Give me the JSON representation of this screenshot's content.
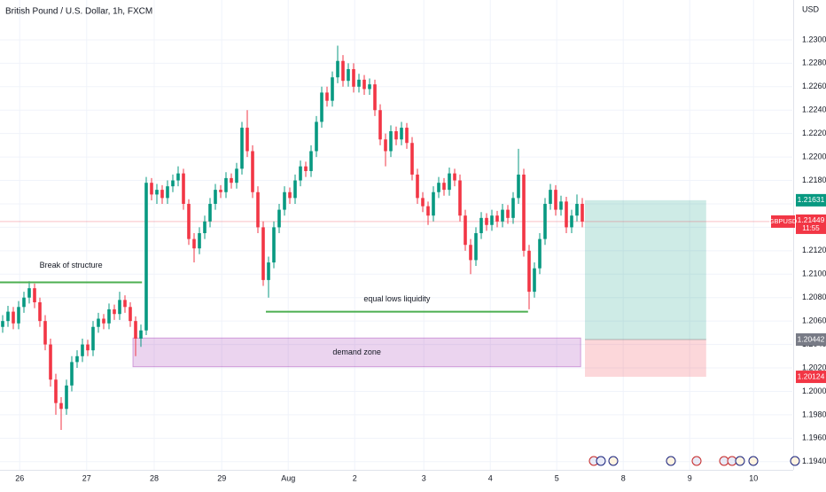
{
  "chart_data": {
    "type": "candlestick",
    "title": "British Pound / U.S. Dollar, 1h, FXCM",
    "currency": "USD",
    "up_color": "#089981",
    "down_color": "#f23645",
    "grid": true,
    "xlim": [
      -0.5,
      148.5
    ],
    "ylim": [
      1.1933,
      1.2334
    ],
    "yticks": [
      {
        "value": 1.194,
        "label": "1.19400"
      },
      {
        "value": 1.196,
        "label": "1.19600"
      },
      {
        "value": 1.198,
        "label": "1.19800"
      },
      {
        "value": 1.2,
        "label": "1.20000"
      },
      {
        "value": 1.202,
        "label": "1.20200"
      },
      {
        "value": 1.204,
        "label": "1.20400"
      },
      {
        "value": 1.206,
        "label": "1.20600"
      },
      {
        "value": 1.208,
        "label": "1.20800"
      },
      {
        "value": 1.21,
        "label": "1.21000"
      },
      {
        "value": 1.212,
        "label": "1.21200"
      },
      {
        "value": 1.214,
        "label": "1.21400"
      },
      {
        "value": 1.216,
        "label": "1.21600"
      },
      {
        "value": 1.218,
        "label": "1.21800"
      },
      {
        "value": 1.22,
        "label": "1.22000"
      },
      {
        "value": 1.222,
        "label": "1.22200"
      },
      {
        "value": 1.224,
        "label": "1.22400"
      },
      {
        "value": 1.226,
        "label": "1.22600"
      },
      {
        "value": 1.228,
        "label": "1.22800"
      },
      {
        "value": 1.23,
        "label": "1.23000"
      }
    ],
    "xticks": [
      {
        "value": 3.2,
        "label": "26"
      },
      {
        "value": 15.8,
        "label": "27"
      },
      {
        "value": 28.5,
        "label": "28"
      },
      {
        "value": 41.2,
        "label": "29"
      },
      {
        "value": 53.7,
        "label": "Aug"
      },
      {
        "value": 66.2,
        "label": "2"
      },
      {
        "value": 79.2,
        "label": "3"
      },
      {
        "value": 91.7,
        "label": "4"
      },
      {
        "value": 104.2,
        "label": "5"
      },
      {
        "value": 116.7,
        "label": "8"
      },
      {
        "value": 129.2,
        "label": "9"
      },
      {
        "value": 141.2,
        "label": "10"
      }
    ],
    "ohlc": [
      [
        1.2055,
        1.2065,
        1.205,
        1.206
      ],
      [
        1.206,
        1.2073,
        1.2055,
        1.2068
      ],
      [
        1.2068,
        1.2072,
        1.2053,
        1.2058
      ],
      [
        1.2058,
        1.2077,
        1.2053,
        1.2072
      ],
      [
        1.2072,
        1.2085,
        1.2067,
        1.208
      ],
      [
        1.208,
        1.2094,
        1.2075,
        1.2088
      ],
      [
        1.2088,
        1.2092,
        1.2071,
        1.2076
      ],
      [
        1.2076,
        1.208,
        1.2055,
        1.206
      ],
      [
        1.206,
        1.2065,
        1.2035,
        1.204
      ],
      [
        1.204,
        1.2045,
        1.2004,
        1.201
      ],
      [
        1.201,
        1.2015,
        1.198,
        1.199
      ],
      [
        1.199,
        1.1995,
        1.1967,
        1.1985
      ],
      [
        1.1985,
        1.201,
        1.198,
        1.2005
      ],
      [
        1.2005,
        1.203,
        1.2,
        1.2025
      ],
      [
        1.2025,
        1.2035,
        1.202,
        1.203
      ],
      [
        1.203,
        1.2045,
        1.2025,
        1.204
      ],
      [
        1.204,
        1.2044,
        1.203,
        1.2035
      ],
      [
        1.2035,
        1.206,
        1.203,
        1.2055
      ],
      [
        1.2055,
        1.2067,
        1.205,
        1.2062
      ],
      [
        1.2062,
        1.2066,
        1.2053,
        1.2058
      ],
      [
        1.2058,
        1.2075,
        1.2053,
        1.207
      ],
      [
        1.207,
        1.2074,
        1.2061,
        1.2066
      ],
      [
        1.2066,
        1.2085,
        1.2061,
        1.2078
      ],
      [
        1.2078,
        1.2082,
        1.2067,
        1.2072
      ],
      [
        1.2072,
        1.2076,
        1.2055,
        1.206
      ],
      [
        1.206,
        1.2064,
        1.203,
        1.2045
      ],
      [
        1.2045,
        1.2057,
        1.2038,
        1.2052
      ],
      [
        1.2052,
        1.2183,
        1.2048,
        1.2178
      ],
      [
        1.2178,
        1.2182,
        1.2163,
        1.2168
      ],
      [
        1.2168,
        1.2177,
        1.216,
        1.2172
      ],
      [
        1.2172,
        1.2176,
        1.216,
        1.2165
      ],
      [
        1.2165,
        1.218,
        1.216,
        1.2175
      ],
      [
        1.2175,
        1.2185,
        1.217,
        1.218
      ],
      [
        1.218,
        1.2192,
        1.2175,
        1.2186
      ],
      [
        1.2186,
        1.219,
        1.2155,
        1.216
      ],
      [
        1.216,
        1.2164,
        1.2125,
        1.213
      ],
      [
        1.213,
        1.2135,
        1.211,
        1.2122
      ],
      [
        1.2122,
        1.214,
        1.2117,
        1.2135
      ],
      [
        1.2135,
        1.215,
        1.213,
        1.2145
      ],
      [
        1.2145,
        1.2165,
        1.214,
        1.216
      ],
      [
        1.216,
        1.2177,
        1.2155,
        1.2172
      ],
      [
        1.2172,
        1.2176,
        1.2165,
        1.217
      ],
      [
        1.217,
        1.2187,
        1.2165,
        1.2182
      ],
      [
        1.2182,
        1.2186,
        1.2173,
        1.2178
      ],
      [
        1.2178,
        1.2195,
        1.2173,
        1.219
      ],
      [
        1.219,
        1.223,
        1.2185,
        1.2225
      ],
      [
        1.2225,
        1.224,
        1.22,
        1.2205
      ],
      [
        1.2205,
        1.221,
        1.2165,
        1.217
      ],
      [
        1.217,
        1.2175,
        1.2135,
        1.214
      ],
      [
        1.214,
        1.2145,
        1.209,
        1.2095
      ],
      [
        1.2095,
        1.2115,
        1.208,
        1.211
      ],
      [
        1.211,
        1.2145,
        1.2105,
        1.214
      ],
      [
        1.214,
        1.216,
        1.2135,
        1.2155
      ],
      [
        1.2155,
        1.2175,
        1.215,
        1.217
      ],
      [
        1.217,
        1.2174,
        1.216,
        1.2165
      ],
      [
        1.2165,
        1.2185,
        1.216,
        1.218
      ],
      [
        1.218,
        1.2197,
        1.2175,
        1.2192
      ],
      [
        1.2192,
        1.2196,
        1.2183,
        1.2188
      ],
      [
        1.2188,
        1.221,
        1.2183,
        1.2205
      ],
      [
        1.2205,
        1.2235,
        1.22,
        1.223
      ],
      [
        1.223,
        1.226,
        1.2225,
        1.2255
      ],
      [
        1.2255,
        1.226,
        1.2243,
        1.2248
      ],
      [
        1.2248,
        1.2273,
        1.2243,
        1.2268
      ],
      [
        1.2268,
        1.2295,
        1.2263,
        1.2282
      ],
      [
        1.2282,
        1.2287,
        1.226,
        1.2265
      ],
      [
        1.2265,
        1.228,
        1.226,
        1.2275
      ],
      [
        1.2275,
        1.228,
        1.2255,
        1.226
      ],
      [
        1.226,
        1.2271,
        1.2255,
        1.2266
      ],
      [
        1.2266,
        1.227,
        1.2253,
        1.2258
      ],
      [
        1.2258,
        1.2267,
        1.2253,
        1.2262
      ],
      [
        1.2262,
        1.2266,
        1.2235,
        1.224
      ],
      [
        1.224,
        1.2245,
        1.221,
        1.2215
      ],
      [
        1.2215,
        1.222,
        1.2192,
        1.2205
      ],
      [
        1.2205,
        1.2227,
        1.22,
        1.2222
      ],
      [
        1.2222,
        1.2226,
        1.221,
        1.2215
      ],
      [
        1.2215,
        1.223,
        1.221,
        1.2225
      ],
      [
        1.2225,
        1.2229,
        1.2207,
        1.2212
      ],
      [
        1.2212,
        1.2217,
        1.218,
        1.2185
      ],
      [
        1.2185,
        1.219,
        1.216,
        1.2165
      ],
      [
        1.2165,
        1.217,
        1.2153,
        1.2158
      ],
      [
        1.2158,
        1.2162,
        1.2142,
        1.215
      ],
      [
        1.215,
        1.2175,
        1.2145,
        1.217
      ],
      [
        1.217,
        1.2183,
        1.2165,
        1.2178
      ],
      [
        1.2178,
        1.2182,
        1.2167,
        1.2172
      ],
      [
        1.2172,
        1.2191,
        1.2167,
        1.2186
      ],
      [
        1.2186,
        1.219,
        1.2175,
        1.218
      ],
      [
        1.218,
        1.2185,
        1.2145,
        1.215
      ],
      [
        1.215,
        1.2155,
        1.212,
        1.2125
      ],
      [
        1.2125,
        1.213,
        1.21,
        1.2112
      ],
      [
        1.2112,
        1.214,
        1.2107,
        1.2135
      ],
      [
        1.2135,
        1.2153,
        1.213,
        1.2148
      ],
      [
        1.2148,
        1.2152,
        1.2137,
        1.2142
      ],
      [
        1.2142,
        1.2155,
        1.2137,
        1.215
      ],
      [
        1.215,
        1.2154,
        1.214,
        1.2145
      ],
      [
        1.2145,
        1.216,
        1.214,
        1.2155
      ],
      [
        1.2155,
        1.2159,
        1.2143,
        1.2148
      ],
      [
        1.2148,
        1.217,
        1.2143,
        1.2165
      ],
      [
        1.2165,
        1.2207,
        1.216,
        1.2185
      ],
      [
        1.2185,
        1.219,
        1.2115,
        1.212
      ],
      [
        1.212,
        1.2125,
        1.207,
        1.2085
      ],
      [
        1.2085,
        1.211,
        1.208,
        1.2105
      ],
      [
        1.2105,
        1.2135,
        1.21,
        1.213
      ],
      [
        1.213,
        1.2165,
        1.2125,
        1.216
      ],
      [
        1.216,
        1.2177,
        1.2155,
        1.2172
      ],
      [
        1.2172,
        1.2176,
        1.215,
        1.2155
      ],
      [
        1.2155,
        1.2167,
        1.215,
        1.2162
      ],
      [
        1.2162,
        1.2166,
        1.2135,
        1.214
      ],
      [
        1.214,
        1.2155,
        1.2135,
        1.215
      ],
      [
        1.215,
        1.2168,
        1.2145,
        1.216
      ],
      [
        1.216,
        1.2165,
        1.214,
        1.21449
      ]
    ],
    "break_of_structure": {
      "label": "Break of structure",
      "price": 1.2093,
      "x": [
        -0.5,
        26.2
      ],
      "color": "#4caf50"
    },
    "equal_lows": {
      "label": "equal lows liquidity",
      "price": 1.2068,
      "x": [
        49.5,
        98.8
      ],
      "color": "#4caf50"
    },
    "demand_zone": {
      "label": "demand zone",
      "top": 1.20455,
      "bottom": 1.2021,
      "x": [
        24.5,
        108.7
      ],
      "color": "#9c27b0"
    },
    "position": {
      "target": 1.21631,
      "entry": 1.20442,
      "stop": 1.20124,
      "x": [
        109.5,
        132.3
      ]
    },
    "last_price": {
      "symbol": "GBPUSD",
      "value": 1.21449,
      "countdown": "11:55"
    }
  }
}
